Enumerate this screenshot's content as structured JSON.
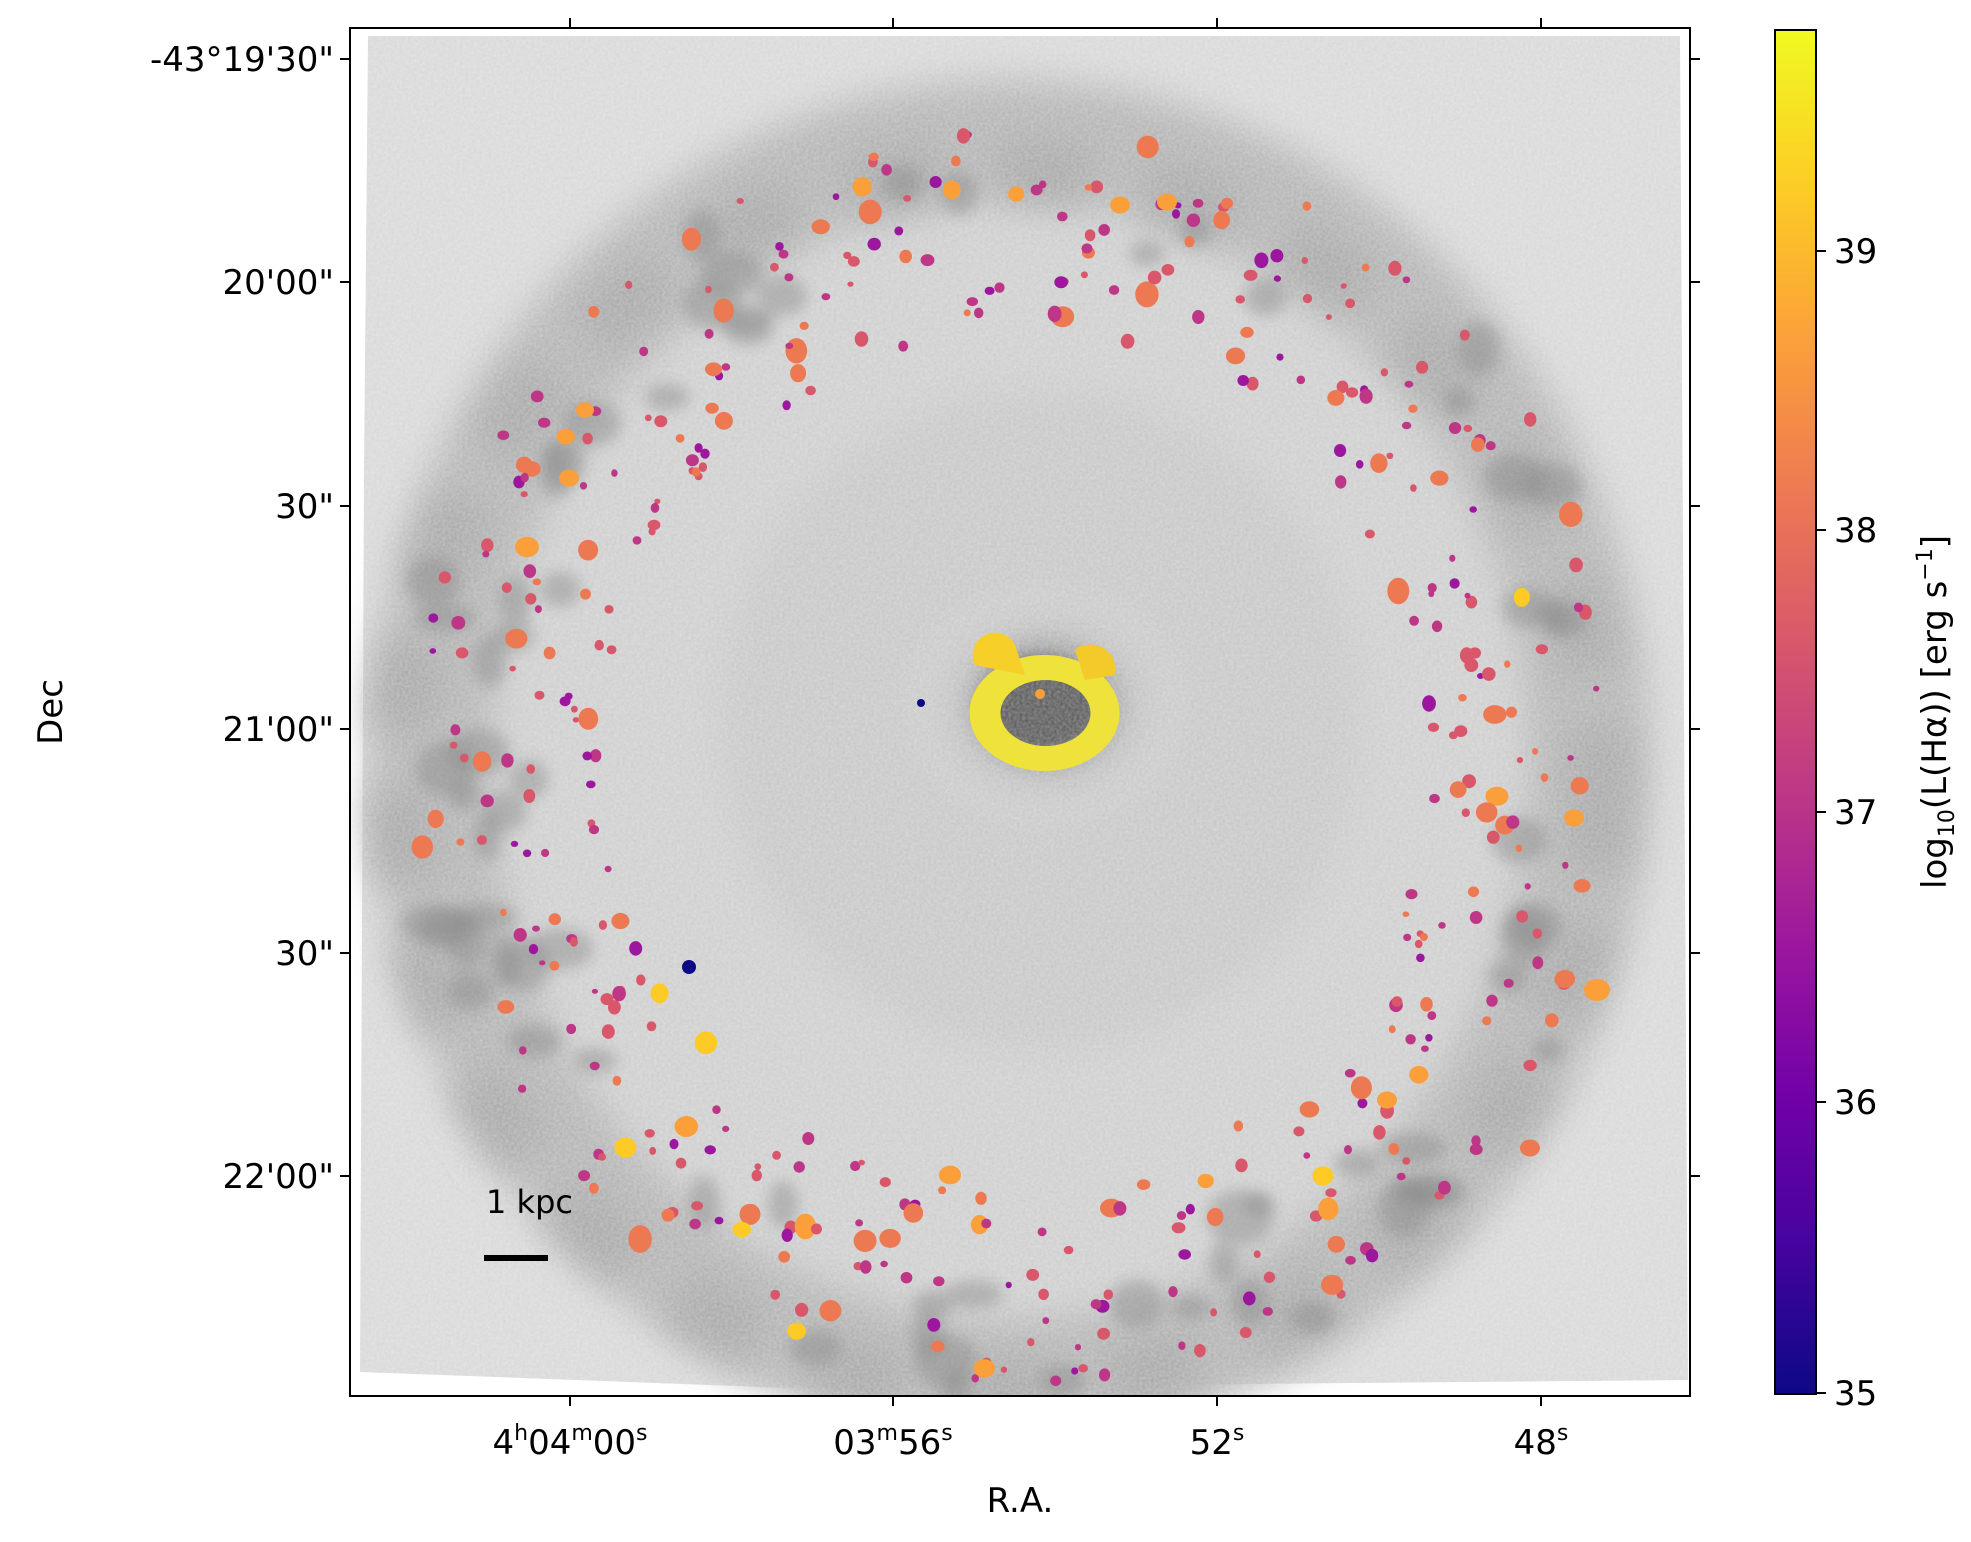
{
  "figure": {
    "xlabel": "R.A.",
    "ylabel": "Dec",
    "colorbar_label_prefix": "log",
    "colorbar_label_sub": "10",
    "colorbar_label_main": "(L(Hα)) [erg s",
    "colorbar_label_sup": "−1",
    "colorbar_label_end": "]",
    "scalebar_label": "1 kpc",
    "x_ticks": [
      {
        "h": "4",
        "hu": "h",
        "m": "04",
        "mu": "m",
        "s": "00",
        "su": "s"
      },
      {
        "m": "03",
        "mu": "m",
        "s": "56",
        "su": "s"
      },
      {
        "s": "52",
        "su": "s"
      },
      {
        "s": "48",
        "su": "s"
      }
    ],
    "y_ticks": [
      "-43°19'30\"",
      "20'00\"",
      "30\"",
      "21'00\"",
      "30\"",
      "22'00\""
    ],
    "colorbar_ticks": [
      "39",
      "38",
      "37",
      "36",
      "35"
    ],
    "colormap": [
      "#0d0887",
      "#46039f",
      "#7201a8",
      "#9c179e",
      "#bd3786",
      "#d8576b",
      "#ed7953",
      "#fb9f3a",
      "#fdca26",
      "#f0f921"
    ],
    "colorbar_range": [
      35,
      39.7
    ]
  }
}
